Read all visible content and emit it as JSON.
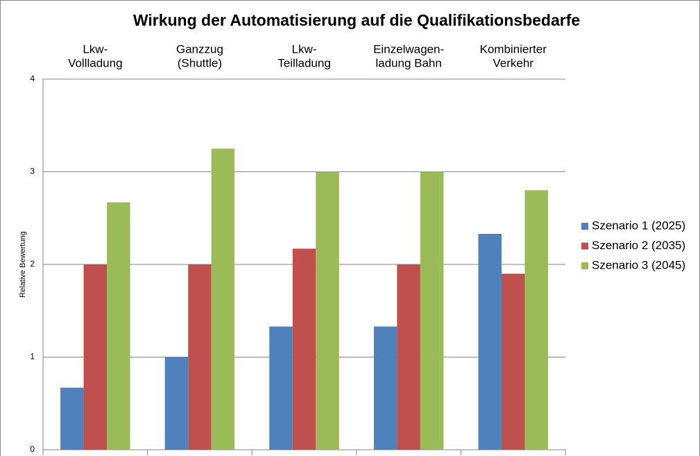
{
  "chart_data": {
    "type": "bar",
    "title": "Wirkung der Automatisierung auf die Qualifikationsbedarfe",
    "y_label": "Relative Bewertung",
    "categories": [
      [
        "Lkw-",
        "Vollladung"
      ],
      [
        "Ganzzug",
        "(Shuttle)"
      ],
      [
        "Lkw-",
        "Teilladung"
      ],
      [
        "Einzelwagen-",
        "ladung Bahn"
      ],
      [
        "Kombinierter",
        "Verkehr"
      ]
    ],
    "series": [
      {
        "name": "Szenario 1 (2025)",
        "color": "#4f81bd",
        "values": [
          0.67,
          1.0,
          1.33,
          1.33,
          2.33
        ]
      },
      {
        "name": "Szenario 2 (2035)",
        "color": "#c0504d",
        "values": [
          2.0,
          2.0,
          2.17,
          2.0,
          1.9
        ]
      },
      {
        "name": "Szenario 3 (2045)",
        "color": "#9bbb59",
        "values": [
          2.67,
          3.25,
          3.0,
          3.0,
          2.8
        ]
      }
    ],
    "ylim": [
      0,
      4
    ],
    "yticks": [
      0,
      1,
      2,
      3,
      4
    ],
    "grid": true,
    "legend": "right"
  }
}
